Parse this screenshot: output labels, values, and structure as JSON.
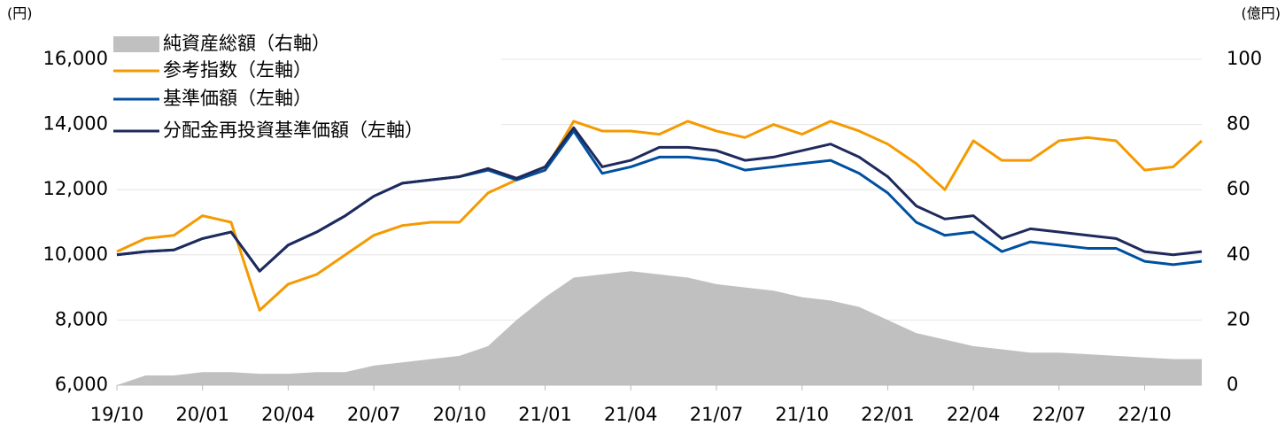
{
  "chart_data": {
    "type": "line",
    "y_label": "(円)",
    "y2_label": "(億円)",
    "categories": [
      "19/10",
      null,
      null,
      "20/01",
      null,
      null,
      "20/04",
      null,
      null,
      "20/07",
      null,
      null,
      "20/10",
      null,
      null,
      "21/01",
      null,
      null,
      "21/04",
      null,
      null,
      "21/07",
      null,
      null,
      "21/10",
      null,
      null,
      "22/01",
      null,
      null,
      "22/04",
      null,
      null,
      "22/07",
      null,
      null,
      "22/10",
      null,
      null
    ],
    "ylim": [
      6000,
      16000
    ],
    "yticks": [
      {
        "value": 6000,
        "label": "6,000"
      },
      {
        "value": 8000,
        "label": "8,000"
      },
      {
        "value": 10000,
        "label": "10,000"
      },
      {
        "value": 12000,
        "label": "12,000"
      },
      {
        "value": 14000,
        "label": "14,000"
      },
      {
        "value": 16000,
        "label": "16,000"
      }
    ],
    "y2lim": [
      0,
      100
    ],
    "y2ticks": [
      0,
      20,
      40,
      60,
      80,
      100
    ],
    "grid": true,
    "legend": "upper left",
    "series": [
      {
        "name": "純資産総額（右軸）",
        "type": "area",
        "axis": "y2",
        "color": "#c0c0c0",
        "values": [
          0,
          3,
          3,
          4,
          4,
          3.5,
          3.5,
          4,
          4,
          6,
          7,
          8,
          9,
          12,
          20,
          27,
          33,
          34,
          35,
          34,
          33,
          31,
          30,
          29,
          27,
          26,
          24,
          20,
          16,
          14,
          12,
          11,
          10,
          10,
          9.5,
          9,
          8.5,
          8,
          8
        ]
      },
      {
        "name": "参考指数（左軸）",
        "color": "#f59a00",
        "values": [
          10100,
          10500,
          10600,
          11200,
          11000,
          8300,
          9100,
          9400,
          10000,
          10600,
          10900,
          11000,
          11000,
          11900,
          12300,
          12600,
          14100,
          13800,
          13800,
          13700,
          14100,
          13800,
          13600,
          14000,
          13700,
          14100,
          13800,
          13400,
          12800,
          12000,
          13500,
          12900,
          12900,
          13500,
          13600,
          13500,
          12600,
          12700,
          13500
        ]
      },
      {
        "name": "基準価額（左軸）",
        "color": "#0050a0",
        "values": [
          10000,
          10100,
          10150,
          10500,
          10700,
          9500,
          10300,
          10700,
          11200,
          11800,
          12200,
          12300,
          12400,
          12600,
          12300,
          12600,
          13800,
          12500,
          12700,
          13000,
          13000,
          12900,
          12600,
          12700,
          12800,
          12900,
          12500,
          11900,
          11000,
          10600,
          10700,
          10100,
          10400,
          10300,
          10200,
          10200,
          9800,
          9700,
          9800
        ]
      },
      {
        "name": "分配金再投資基準価額（左軸）",
        "color": "#1f2a5c",
        "values": [
          10000,
          10100,
          10150,
          10500,
          10700,
          9500,
          10300,
          10700,
          11200,
          11800,
          12200,
          12300,
          12400,
          12650,
          12350,
          12700,
          13900,
          12700,
          12900,
          13300,
          13300,
          13200,
          12900,
          13000,
          13200,
          13400,
          13000,
          12400,
          11500,
          11100,
          11200,
          10500,
          10800,
          10700,
          10600,
          10500,
          10100,
          10000,
          10100
        ]
      }
    ]
  }
}
